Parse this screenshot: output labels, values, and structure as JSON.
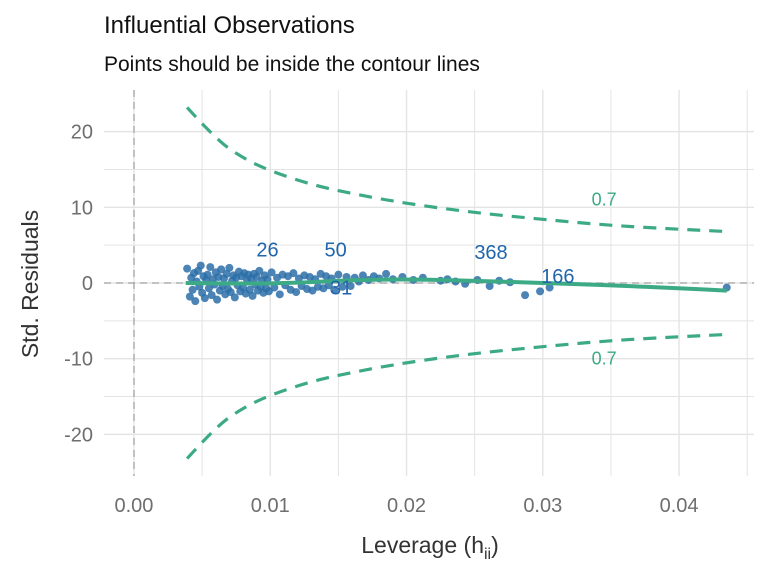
{
  "chart_data": {
    "type": "scatter",
    "title": "Influential Observations",
    "subtitle": "Points should be inside the contour lines",
    "xlabel": "Leverage (h",
    "xlabel_sub": "ii",
    "xlabel_close": ")",
    "ylabel": "Std. Residuals",
    "xlim": [
      -0.0022,
      0.0455
    ],
    "ylim": [
      -25.5,
      25.5
    ],
    "x_ticks": [
      0.0,
      0.01,
      0.02,
      0.03,
      0.04
    ],
    "x_tick_labels": [
      "0.00",
      "0.01",
      "0.02",
      "0.03",
      "0.04"
    ],
    "y_ticks": [
      -20,
      -10,
      0,
      10,
      20
    ],
    "y_tick_labels": [
      "-20",
      "-10",
      "0",
      "10",
      "20"
    ],
    "grid": true,
    "reference_lines": {
      "x": 0,
      "y": 0
    },
    "colors": {
      "points": "#2c6ea8",
      "labels": "#2166ac",
      "fit": "#3daa86",
      "contour": "#3daa86",
      "refline": "#a6a6a6",
      "grid": "#e4e4e4"
    },
    "series": [
      {
        "type": "scatter",
        "points": [
          [
            0.0039,
            1.9
          ],
          [
            0.0041,
            -1.8
          ],
          [
            0.0042,
            0.7
          ],
          [
            0.0043,
            -0.9
          ],
          [
            0.0044,
            1.3
          ],
          [
            0.0045,
            -2.4
          ],
          [
            0.0046,
            0.2
          ],
          [
            0.0047,
            1.6
          ],
          [
            0.0048,
            -0.5
          ],
          [
            0.0049,
            2.3
          ],
          [
            0.005,
            -1.3
          ],
          [
            0.0051,
            0.9
          ],
          [
            0.0052,
            -2.0
          ],
          [
            0.0053,
            0.4
          ],
          [
            0.0054,
            1.1
          ],
          [
            0.0055,
            -0.7
          ],
          [
            0.0056,
            2.1
          ],
          [
            0.0057,
            -1.6
          ],
          [
            0.0058,
            0.5
          ],
          [
            0.0059,
            -0.2
          ],
          [
            0.006,
            1.4
          ],
          [
            0.0061,
            -2.2
          ],
          [
            0.0062,
            0.8
          ],
          [
            0.0063,
            -1.0
          ],
          [
            0.0064,
            1.8
          ],
          [
            0.0065,
            -0.4
          ],
          [
            0.0066,
            0.6
          ],
          [
            0.0067,
            -1.5
          ],
          [
            0.0068,
            1.2
          ],
          [
            0.0069,
            -0.8
          ],
          [
            0.007,
            2.0
          ],
          [
            0.0071,
            -1.2
          ],
          [
            0.0072,
            0.3
          ],
          [
            0.0073,
            1.0
          ],
          [
            0.0074,
            -1.9
          ],
          [
            0.0075,
            0.7
          ],
          [
            0.0076,
            -0.3
          ],
          [
            0.0077,
            1.5
          ],
          [
            0.0078,
            -1.1
          ],
          [
            0.0079,
            0.9
          ],
          [
            0.008,
            -0.6
          ],
          [
            0.0081,
            1.3
          ],
          [
            0.0082,
            -1.4
          ],
          [
            0.0083,
            0.4
          ],
          [
            0.0084,
            1.1
          ],
          [
            0.0085,
            -0.9
          ],
          [
            0.0086,
            0.6
          ],
          [
            0.0087,
            -1.7
          ],
          [
            0.0088,
            1.2
          ],
          [
            0.0089,
            -0.2
          ],
          [
            0.009,
            0.8
          ],
          [
            0.0091,
            -1.0
          ],
          [
            0.0092,
            1.6
          ],
          [
            0.0093,
            -0.5
          ],
          [
            0.0094,
            0.3
          ],
          [
            0.0095,
            -1.3
          ],
          [
            0.0096,
            1.0
          ],
          [
            0.0097,
            -0.7
          ],
          [
            0.0098,
            0.5
          ],
          [
            0.0099,
            -1.1
          ],
          [
            0.0101,
            1.4
          ],
          [
            0.0103,
            -0.6
          ],
          [
            0.0105,
            0.7
          ],
          [
            0.0107,
            -1.5
          ],
          [
            0.0109,
            1.1
          ],
          [
            0.0111,
            -0.3
          ],
          [
            0.0113,
            0.9
          ],
          [
            0.0115,
            -0.9
          ],
          [
            0.0117,
            1.3
          ],
          [
            0.0119,
            -1.2
          ],
          [
            0.0121,
            0.6
          ],
          [
            0.0123,
            -0.4
          ],
          [
            0.0125,
            1.0
          ],
          [
            0.0127,
            -0.8
          ],
          [
            0.0129,
            0.8
          ],
          [
            0.0131,
            -1.0
          ],
          [
            0.0133,
            0.5
          ],
          [
            0.0135,
            -0.5
          ],
          [
            0.0137,
            1.2
          ],
          [
            0.0139,
            -0.7
          ],
          [
            0.0141,
            0.9
          ],
          [
            0.0143,
            -0.3
          ],
          [
            0.0145,
            0.6
          ],
          [
            0.0147,
            -0.9
          ],
          [
            0.015,
            1.1
          ],
          [
            0.0153,
            -0.5
          ],
          [
            0.0156,
            0.8
          ],
          [
            0.0159,
            -0.4
          ],
          [
            0.0162,
            0.7
          ],
          [
            0.0165,
            0.2
          ],
          [
            0.0168,
            1.0
          ],
          [
            0.0172,
            0.4
          ],
          [
            0.0176,
            0.9
          ],
          [
            0.018,
            0.6
          ],
          [
            0.0185,
            1.2
          ],
          [
            0.019,
            0.5
          ],
          [
            0.0197,
            0.8
          ],
          [
            0.0205,
            0.4
          ],
          [
            0.0212,
            0.7
          ],
          [
            0.0225,
            0.3
          ],
          [
            0.023,
            0.5
          ],
          [
            0.0236,
            0.2
          ],
          [
            0.0243,
            -0.1
          ],
          [
            0.0252,
            0.4
          ],
          [
            0.0261,
            -0.4
          ],
          [
            0.0268,
            0.3
          ],
          [
            0.0276,
            0.1
          ],
          [
            0.0287,
            -1.6
          ],
          [
            0.0298,
            -1.1
          ],
          [
            0.0305,
            -0.6
          ],
          [
            0.0435,
            -0.6
          ]
        ]
      },
      {
        "type": "fit",
        "points": [
          [
            0.0038,
            0.0
          ],
          [
            0.008,
            -0.1
          ],
          [
            0.012,
            0.0
          ],
          [
            0.016,
            0.4
          ],
          [
            0.02,
            0.5
          ],
          [
            0.025,
            0.3
          ],
          [
            0.03,
            0.0
          ],
          [
            0.035,
            -0.3
          ],
          [
            0.04,
            -0.7
          ],
          [
            0.0435,
            -1.0
          ]
        ]
      },
      {
        "type": "contour",
        "name": "upper",
        "points": [
          [
            0.0039,
            23.2
          ],
          [
            0.006,
            19.0
          ],
          [
            0.008,
            16.5
          ],
          [
            0.01,
            14.8
          ],
          [
            0.013,
            13.0
          ],
          [
            0.016,
            11.8
          ],
          [
            0.02,
            10.5
          ],
          [
            0.025,
            9.3
          ],
          [
            0.03,
            8.4
          ],
          [
            0.035,
            7.6
          ],
          [
            0.04,
            7.1
          ],
          [
            0.0435,
            6.8
          ]
        ]
      },
      {
        "type": "contour",
        "name": "lower",
        "points": [
          [
            0.0039,
            -23.2
          ],
          [
            0.006,
            -19.0
          ],
          [
            0.008,
            -16.5
          ],
          [
            0.01,
            -14.8
          ],
          [
            0.013,
            -13.0
          ],
          [
            0.016,
            -11.8
          ],
          [
            0.02,
            -10.5
          ],
          [
            0.025,
            -9.3
          ],
          [
            0.03,
            -8.4
          ],
          [
            0.035,
            -7.6
          ],
          [
            0.04,
            -7.1
          ],
          [
            0.0435,
            -6.8
          ]
        ]
      }
    ],
    "point_labels": [
      {
        "text": "26",
        "x": 0.0098,
        "y": 4.4
      },
      {
        "text": "50",
        "x": 0.0148,
        "y": 4.4
      },
      {
        "text": "31",
        "x": 0.0152,
        "y": -0.6
      },
      {
        "text": "368",
        "x": 0.0262,
        "y": 4.1
      },
      {
        "text": "166",
        "x": 0.0311,
        "y": 0.9
      }
    ],
    "contour_labels": [
      {
        "text": "0.7",
        "x": 0.0345,
        "y": 11.0
      },
      {
        "text": "0.7",
        "x": 0.0345,
        "y": -10.0
      }
    ]
  }
}
